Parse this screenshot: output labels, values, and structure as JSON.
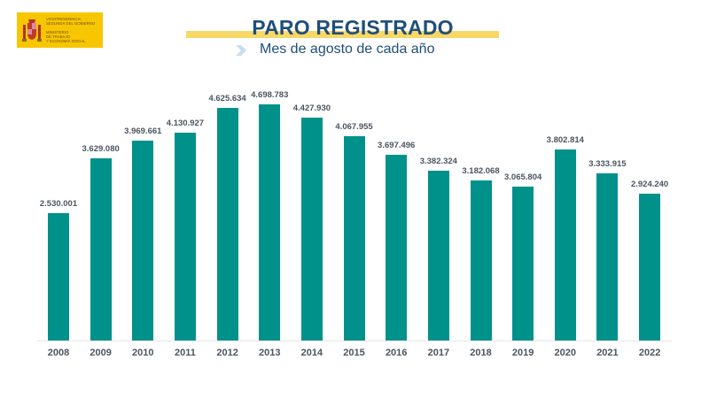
{
  "header": {
    "logo": {
      "line1": "VICEPRESIDENCIA",
      "line2": "SEGUNDA DEL GOBIERNO",
      "line3": "MINISTERIO",
      "line4": "DE TRABAJO",
      "line5": "Y ECONOMÍA SOCIAL",
      "icon": "spanish-coat-of-arms-icon",
      "background_color": "#f7c600"
    },
    "title": "PARO REGISTRADO",
    "subtitle": "Mes de agosto de cada año",
    "subtitle_icon": "chevron-right-icon",
    "accent_color": "#f7d867",
    "title_color": "#1f4e79"
  },
  "chart_data": {
    "type": "bar",
    "title": "PARO REGISTRADO",
    "subtitle": "Mes de agosto de cada año",
    "xlabel": "",
    "ylabel": "",
    "categories": [
      "2008",
      "2009",
      "2010",
      "2011",
      "2012",
      "2013",
      "2014",
      "2015",
      "2016",
      "2017",
      "2018",
      "2019",
      "2020",
      "2021",
      "2022"
    ],
    "values": [
      2530001,
      3629080,
      3969661,
      4130927,
      4625634,
      4698783,
      4427930,
      4067955,
      3697496,
      3382324,
      3182068,
      3065804,
      3802814,
      3333915,
      2924240
    ],
    "value_labels": [
      "2.530.001",
      "3.629.080",
      "3.969.661",
      "4.130.927",
      "4.625.634",
      "4.698.783",
      "4.427.930",
      "4.067.955",
      "3.697.496",
      "3.382.324",
      "3.182.068",
      "3.065.804",
      "3.802.814",
      "3.333.915",
      "2.924.240"
    ],
    "bar_color": "#00918b",
    "ylim": [
      0,
      4698783
    ],
    "grid": false,
    "legend": null,
    "y_axis_visible": false
  }
}
